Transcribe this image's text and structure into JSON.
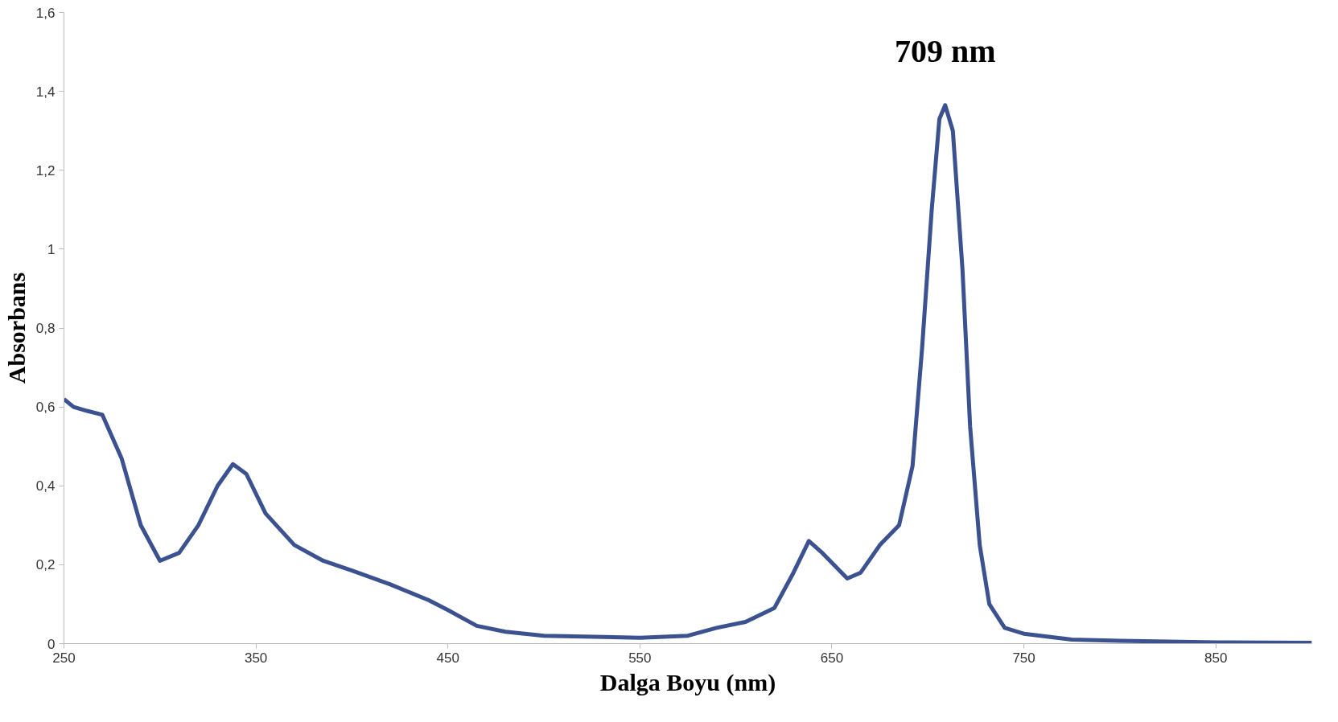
{
  "chart_data": {
    "type": "line",
    "xlabel": "Dalga Boyu (nm)",
    "ylabel": "Absorbans",
    "x": [
      250,
      255,
      262,
      270,
      280,
      290,
      300,
      310,
      320,
      330,
      338,
      345,
      355,
      370,
      385,
      400,
      420,
      440,
      450,
      465,
      480,
      500,
      550,
      575,
      590,
      605,
      620,
      630,
      638,
      645,
      658,
      665,
      675,
      685,
      692,
      697,
      702,
      706,
      709,
      713,
      718,
      722,
      727,
      732,
      740,
      750,
      775,
      800,
      850,
      900
    ],
    "series": [
      {
        "color": "#3b5190",
        "values": [
          0.62,
          0.6,
          0.59,
          0.58,
          0.47,
          0.3,
          0.21,
          0.23,
          0.3,
          0.4,
          0.455,
          0.43,
          0.33,
          0.25,
          0.21,
          0.185,
          0.15,
          0.11,
          0.085,
          0.045,
          0.03,
          0.02,
          0.015,
          0.02,
          0.04,
          0.055,
          0.09,
          0.18,
          0.26,
          0.23,
          0.165,
          0.18,
          0.25,
          0.3,
          0.45,
          0.75,
          1.1,
          1.33,
          1.365,
          1.3,
          0.95,
          0.55,
          0.25,
          0.1,
          0.04,
          0.025,
          0.01,
          0.007,
          0.003,
          0.002
        ]
      }
    ],
    "xlim": [
      250,
      900
    ],
    "xticks": [
      250,
      350,
      450,
      550,
      650,
      750,
      850
    ],
    "ylim": [
      0,
      1.6
    ],
    "yticks": [
      0,
      {
        "value": 0.2,
        "label": "0,2"
      },
      {
        "value": 0.4,
        "label": "0,4"
      },
      {
        "value": 0.6,
        "label": "0,6"
      },
      {
        "value": 0.8,
        "label": "0,8"
      },
      1,
      {
        "value": 1.2,
        "label": "1,2"
      },
      {
        "value": 1.4,
        "label": "1,4"
      },
      {
        "value": 1.6,
        "label": "1,6"
      }
    ],
    "annotations": [
      {
        "text": "709 nm",
        "x": 709,
        "y": 1.365
      }
    ],
    "grid": false,
    "marker": "none",
    "line_style": "solid"
  }
}
